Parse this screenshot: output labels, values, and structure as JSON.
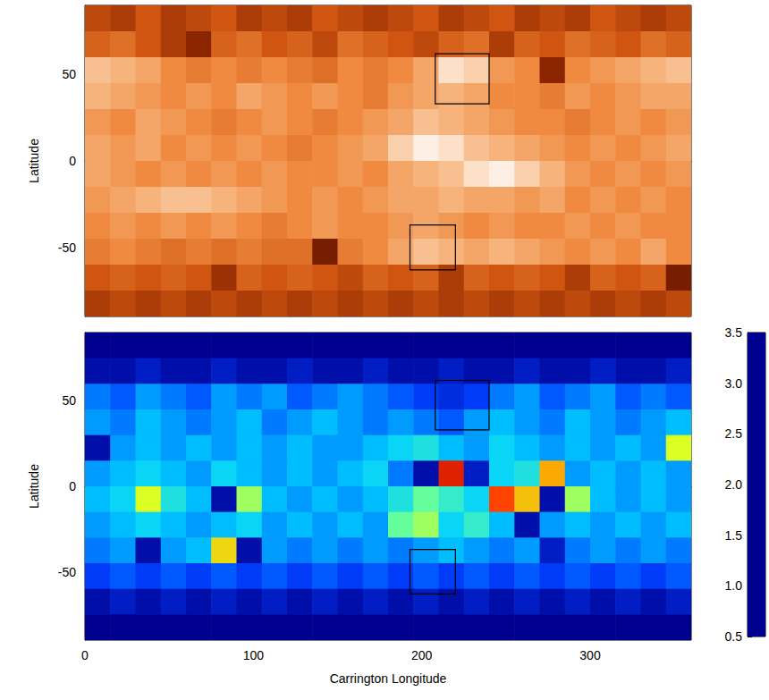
{
  "chart_data": [
    {
      "type": "heatmap",
      "ylabel": "Latitude",
      "xlim": [
        0,
        360
      ],
      "xticks": [
        0,
        100,
        200,
        300
      ],
      "ylim": [
        -90,
        90
      ],
      "yticks": [
        -50,
        0,
        50
      ],
      "tick_labels": "y",
      "color_range": [
        0,
        1
      ],
      "x": [
        7.5,
        22.5,
        37.5,
        52.5,
        67.5,
        82.5,
        97.5,
        112.5,
        127.5,
        142.5,
        157.5,
        172.5,
        187.5,
        202.5,
        217.5,
        232.5,
        247.5,
        262.5,
        277.5,
        292.5,
        307.5,
        322.5,
        337.5,
        352.5
      ],
      "y": [
        82.5,
        67.5,
        52.5,
        37.5,
        22.5,
        7.5,
        -7.5,
        -22.5,
        -37.5,
        -52.5,
        -67.5,
        -82.5
      ],
      "values": [
        [
          0.35,
          0.3,
          0.4,
          0.3,
          0.35,
          0.4,
          0.3,
          0.35,
          0.3,
          0.4,
          0.35,
          0.3,
          0.35,
          0.4,
          0.3,
          0.35,
          0.4,
          0.3,
          0.35,
          0.3,
          0.4,
          0.35,
          0.3,
          0.35
        ],
        [
          0.45,
          0.5,
          0.4,
          0.3,
          0.2,
          0.45,
          0.5,
          0.4,
          0.45,
          0.35,
          0.5,
          0.45,
          0.4,
          0.35,
          0.45,
          0.5,
          0.3,
          0.45,
          0.4,
          0.5,
          0.45,
          0.4,
          0.5,
          0.45
        ],
        [
          0.8,
          0.75,
          0.7,
          0.6,
          0.55,
          0.6,
          0.55,
          0.6,
          0.55,
          0.5,
          0.6,
          0.55,
          0.6,
          0.7,
          0.9,
          0.85,
          0.65,
          0.6,
          0.2,
          0.6,
          0.65,
          0.7,
          0.75,
          0.8
        ],
        [
          0.75,
          0.7,
          0.65,
          0.6,
          0.65,
          0.6,
          0.7,
          0.65,
          0.6,
          0.65,
          0.6,
          0.55,
          0.65,
          0.7,
          0.75,
          0.7,
          0.6,
          0.6,
          0.55,
          0.65,
          0.6,
          0.65,
          0.7,
          0.7
        ],
        [
          0.65,
          0.6,
          0.7,
          0.65,
          0.6,
          0.55,
          0.6,
          0.65,
          0.6,
          0.55,
          0.6,
          0.65,
          0.7,
          0.8,
          0.75,
          0.7,
          0.65,
          0.6,
          0.6,
          0.55,
          0.6,
          0.65,
          0.6,
          0.65
        ],
        [
          0.7,
          0.65,
          0.7,
          0.6,
          0.65,
          0.6,
          0.65,
          0.6,
          0.55,
          0.6,
          0.65,
          0.7,
          0.85,
          0.95,
          0.9,
          0.8,
          0.75,
          0.7,
          0.65,
          0.6,
          0.65,
          0.6,
          0.65,
          0.7
        ],
        [
          0.7,
          0.65,
          0.6,
          0.65,
          0.6,
          0.65,
          0.6,
          0.65,
          0.6,
          0.6,
          0.65,
          0.6,
          0.7,
          0.75,
          0.8,
          0.9,
          0.95,
          0.85,
          0.75,
          0.65,
          0.6,
          0.65,
          0.6,
          0.65
        ],
        [
          0.65,
          0.7,
          0.75,
          0.8,
          0.8,
          0.75,
          0.7,
          0.65,
          0.6,
          0.65,
          0.6,
          0.65,
          0.7,
          0.7,
          0.75,
          0.7,
          0.7,
          0.65,
          0.7,
          0.6,
          0.65,
          0.6,
          0.65,
          0.6
        ],
        [
          0.6,
          0.65,
          0.6,
          0.65,
          0.6,
          0.65,
          0.6,
          0.55,
          0.6,
          0.65,
          0.6,
          0.6,
          0.65,
          0.7,
          0.65,
          0.6,
          0.65,
          0.6,
          0.6,
          0.65,
          0.6,
          0.65,
          0.6,
          0.6
        ],
        [
          0.55,
          0.6,
          0.55,
          0.5,
          0.55,
          0.5,
          0.55,
          0.5,
          0.5,
          0.15,
          0.55,
          0.6,
          0.7,
          0.8,
          0.75,
          0.7,
          0.75,
          0.7,
          0.65,
          0.6,
          0.65,
          0.6,
          0.7,
          0.6
        ],
        [
          0.4,
          0.45,
          0.4,
          0.45,
          0.4,
          0.25,
          0.45,
          0.4,
          0.45,
          0.4,
          0.35,
          0.45,
          0.4,
          0.45,
          0.3,
          0.45,
          0.4,
          0.45,
          0.4,
          0.3,
          0.45,
          0.4,
          0.45,
          0.15
        ],
        [
          0.3,
          0.35,
          0.3,
          0.35,
          0.3,
          0.35,
          0.3,
          0.35,
          0.3,
          0.35,
          0.3,
          0.35,
          0.3,
          0.35,
          0.3,
          0.35,
          0.3,
          0.35,
          0.3,
          0.35,
          0.3,
          0.35,
          0.3,
          0.35
        ]
      ],
      "boxes": [
        {
          "x": [
            208,
            240
          ],
          "y": [
            33,
            62
          ]
        },
        {
          "x": [
            193,
            220
          ],
          "y": [
            -63,
            -37
          ]
        }
      ]
    },
    {
      "type": "heatmap",
      "xlabel": "Carrington Longitude",
      "ylabel": "Latitude",
      "xlim": [
        0,
        360
      ],
      "xticks": [
        0,
        100,
        200,
        300
      ],
      "ylim": [
        -90,
        90
      ],
      "yticks": [
        -50,
        0,
        50
      ],
      "colorbar": {
        "range": [
          0.5,
          3.5
        ],
        "ticks": [
          0.5,
          {
            "value": 1,
            "label": "1.0"
          },
          1.5,
          {
            "value": 2,
            "label": "2.0"
          },
          2.5,
          {
            "value": 3,
            "label": "3.0"
          },
          3.5
        ]
      },
      "x": [
        7.5,
        22.5,
        37.5,
        52.5,
        67.5,
        82.5,
        97.5,
        112.5,
        127.5,
        142.5,
        157.5,
        172.5,
        187.5,
        202.5,
        217.5,
        232.5,
        247.5,
        262.5,
        277.5,
        292.5,
        307.5,
        322.5,
        337.5,
        352.5
      ],
      "y": [
        82.5,
        67.5,
        52.5,
        37.5,
        22.5,
        7.5,
        -7.5,
        -22.5,
        -37.5,
        -52.5,
        -67.5,
        -82.5
      ],
      "values": [
        [
          0.5,
          0.5,
          0.5,
          0.5,
          0.5,
          0.5,
          0.5,
          0.5,
          0.5,
          0.5,
          0.5,
          0.5,
          0.5,
          0.5,
          0.5,
          0.5,
          0.5,
          0.5,
          0.5,
          0.5,
          0.5,
          0.5,
          0.5,
          0.5
        ],
        [
          0.6,
          0.6,
          0.7,
          0.6,
          0.6,
          0.7,
          0.6,
          0.6,
          0.7,
          0.6,
          0.6,
          0.7,
          0.6,
          0.6,
          0.7,
          0.6,
          0.6,
          0.7,
          0.6,
          0.6,
          0.7,
          0.6,
          0.6,
          0.7
        ],
        [
          1.1,
          1.0,
          1.2,
          1.1,
          1.0,
          1.2,
          1.1,
          1.2,
          1.0,
          1.1,
          1.2,
          1.1,
          1.0,
          0.9,
          0.8,
          0.9,
          1.1,
          1.2,
          1.0,
          1.1,
          1.2,
          1.0,
          1.1,
          1.0
        ],
        [
          1.2,
          1.1,
          1.3,
          1.2,
          1.1,
          1.2,
          1.3,
          1.1,
          1.2,
          1.3,
          1.2,
          1.1,
          1.2,
          1.1,
          1.0,
          1.2,
          1.3,
          1.2,
          1.1,
          1.3,
          1.2,
          1.1,
          1.2,
          1.3
        ],
        [
          0.6,
          1.2,
          1.3,
          1.2,
          1.3,
          1.2,
          1.3,
          1.2,
          1.3,
          1.2,
          1.2,
          1.3,
          1.4,
          1.5,
          1.3,
          1.2,
          1.4,
          1.3,
          1.2,
          1.3,
          1.2,
          1.3,
          1.2,
          2.2
        ],
        [
          1.2,
          1.3,
          1.4,
          1.3,
          1.2,
          1.4,
          1.3,
          1.2,
          1.3,
          1.2,
          1.3,
          1.4,
          1.1,
          0.6,
          3.2,
          0.7,
          1.4,
          1.5,
          2.6,
          1.2,
          1.3,
          1.2,
          1.3,
          1.2
        ],
        [
          1.3,
          1.4,
          2.2,
          1.5,
          1.3,
          0.6,
          2.0,
          1.3,
          1.2,
          1.3,
          1.2,
          1.3,
          1.5,
          1.8,
          1.6,
          1.4,
          3.0,
          2.5,
          0.6,
          2.0,
          1.3,
          1.2,
          1.3,
          1.2
        ],
        [
          1.2,
          1.3,
          1.4,
          1.3,
          1.2,
          1.3,
          1.4,
          1.2,
          1.3,
          1.2,
          1.3,
          1.2,
          1.8,
          2.0,
          1.4,
          1.6,
          1.3,
          0.6,
          1.2,
          1.3,
          1.2,
          1.3,
          1.2,
          1.3
        ],
        [
          1.1,
          1.2,
          0.6,
          1.2,
          1.3,
          2.4,
          0.6,
          1.2,
          1.1,
          1.2,
          1.1,
          1.2,
          1.1,
          1.2,
          1.3,
          1.2,
          1.1,
          1.2,
          0.7,
          1.1,
          1.2,
          1.1,
          1.2,
          1.1
        ],
        [
          0.9,
          1.0,
          0.9,
          1.0,
          0.9,
          1.0,
          0.9,
          1.0,
          0.9,
          1.0,
          0.9,
          1.0,
          0.9,
          1.0,
          0.9,
          1.0,
          0.9,
          1.0,
          0.9,
          1.0,
          0.9,
          1.0,
          0.9,
          1.0
        ],
        [
          0.6,
          0.7,
          0.6,
          0.7,
          0.6,
          0.7,
          0.6,
          0.7,
          0.6,
          0.7,
          0.6,
          0.7,
          0.6,
          0.7,
          0.6,
          0.7,
          0.6,
          0.7,
          0.6,
          0.7,
          0.6,
          0.7,
          0.6,
          0.7
        ],
        [
          0.5,
          0.5,
          0.5,
          0.5,
          0.5,
          0.5,
          0.5,
          0.5,
          0.5,
          0.5,
          0.5,
          0.5,
          0.5,
          0.5,
          0.5,
          0.5,
          0.5,
          0.5,
          0.5,
          0.5,
          0.5,
          0.5,
          0.5,
          0.5
        ]
      ],
      "boxes": [
        {
          "x": [
            208,
            240
          ],
          "y": [
            33,
            62
          ]
        },
        {
          "x": [
            193,
            220
          ],
          "y": [
            -63,
            -37
          ]
        }
      ]
    }
  ]
}
